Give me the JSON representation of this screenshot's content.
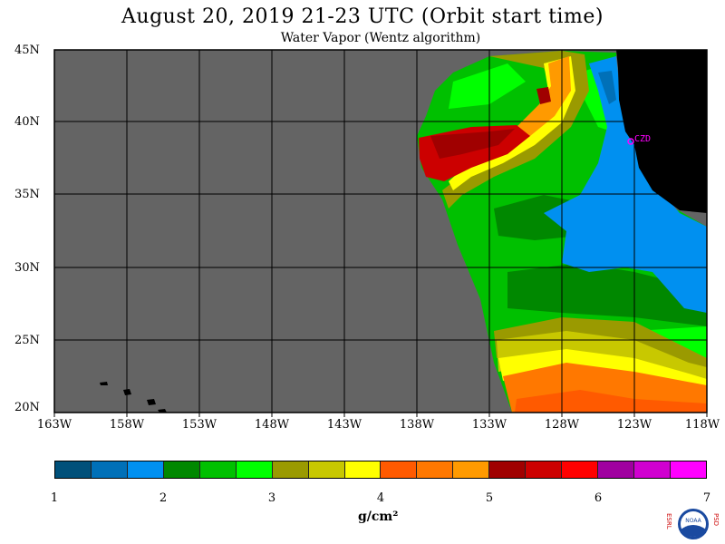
{
  "title": "August 20, 2019  21-23 UTC  (Orbit start time)",
  "subtitle": "Water Vapor (Wentz algorithm)",
  "map": {
    "lat_labels": [
      "45N",
      "40N",
      "35N",
      "30N",
      "25N",
      "20N"
    ],
    "lon_labels": [
      "163W",
      "158W",
      "153W",
      "148W",
      "143W",
      "138W",
      "133W",
      "128W",
      "123W",
      "118W"
    ],
    "station_label": "CZD",
    "no_data_color": "#646464",
    "land_color": "#000000",
    "station_color": "#ff00ff"
  },
  "colorbar": {
    "labels": [
      "1",
      "2",
      "3",
      "4",
      "5",
      "6",
      "7"
    ],
    "colors": [
      "#00507a",
      "#0070b8",
      "#0090f0",
      "#008800",
      "#00c000",
      "#00ff00",
      "#9a9a00",
      "#c8c800",
      "#ffff00",
      "#ff5a00",
      "#ff7800",
      "#ff9a00",
      "#a00000",
      "#cc0000",
      "#ff0000",
      "#a000a0",
      "#d000d0",
      "#ff00ff"
    ],
    "units": "g/cm²"
  },
  "logo": {
    "left_text": "ESRL",
    "right_text": "PSD",
    "center_text": "NOAA"
  }
}
